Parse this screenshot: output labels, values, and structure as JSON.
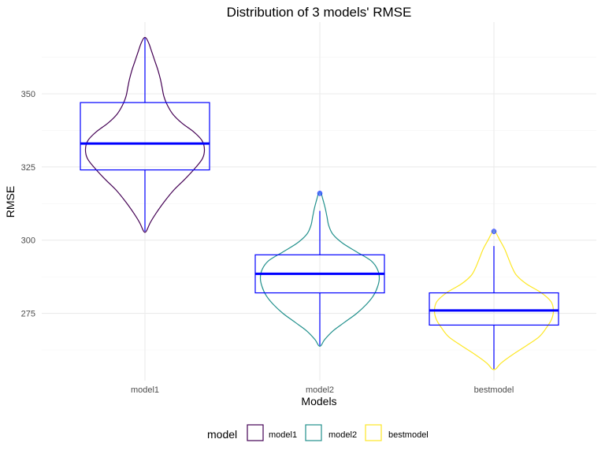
{
  "chart_data": {
    "type": "violin+box",
    "title": "Distribution of 3 models' RMSE",
    "xlabel": "Models",
    "ylabel": "RMSE",
    "categories": [
      "model1",
      "model2",
      "bestmodel"
    ],
    "yticks": [
      275,
      300,
      325,
      350
    ],
    "ylim": [
      252,
      374.5
    ],
    "grid": true,
    "legend": {
      "title": "model",
      "position": "bottom",
      "items": [
        "model1",
        "model2",
        "bestmodel"
      ]
    },
    "colors": {
      "model1": "#440154",
      "model2": "#21908C",
      "bestmodel": "#FDE725",
      "box": "#0000FF",
      "outlier": "#3366FF",
      "grid_major": "#EBEBEB",
      "grid_minor": "#F5F5F5"
    },
    "series": [
      {
        "name": "model1",
        "box": {
          "min": 303,
          "q1": 324,
          "median": 333,
          "q3": 347,
          "max": 369
        },
        "outliers": [],
        "violin": {
          "min": 303,
          "max": 369,
          "profile": [
            [
              303,
              0.02
            ],
            [
              306,
              0.09
            ],
            [
              309,
              0.18
            ],
            [
              313,
              0.32
            ],
            [
              317,
              0.48
            ],
            [
              321,
              0.68
            ],
            [
              325,
              0.86
            ],
            [
              328,
              0.97
            ],
            [
              331,
              1.0
            ],
            [
              334,
              0.96
            ],
            [
              337,
              0.82
            ],
            [
              340,
              0.62
            ],
            [
              343,
              0.47
            ],
            [
              346,
              0.38
            ],
            [
              349,
              0.32
            ],
            [
              352,
              0.29
            ],
            [
              355,
              0.26
            ],
            [
              358,
              0.22
            ],
            [
              361,
              0.17
            ],
            [
              364,
              0.12
            ],
            [
              367,
              0.07
            ],
            [
              369,
              0.02
            ]
          ]
        }
      },
      {
        "name": "model2",
        "box": {
          "min": 264,
          "q1": 282,
          "median": 288.5,
          "q3": 295,
          "max": 310
        },
        "outliers": [
          316
        ],
        "violin": {
          "min": 264,
          "max": 316,
          "profile": [
            [
              264,
              0.02
            ],
            [
              266,
              0.08
            ],
            [
              269,
              0.22
            ],
            [
              272,
              0.42
            ],
            [
              275,
              0.62
            ],
            [
              278,
              0.78
            ],
            [
              281,
              0.9
            ],
            [
              284,
              0.97
            ],
            [
              287,
              1.0
            ],
            [
              290,
              0.97
            ],
            [
              293,
              0.86
            ],
            [
              296,
              0.62
            ],
            [
              299,
              0.38
            ],
            [
              302,
              0.22
            ],
            [
              305,
              0.15
            ],
            [
              308,
              0.12
            ],
            [
              311,
              0.09
            ],
            [
              314,
              0.05
            ],
            [
              316,
              0.02
            ]
          ]
        }
      },
      {
        "name": "bestmodel",
        "box": {
          "min": 256,
          "q1": 271,
          "median": 276,
          "q3": 282,
          "max": 298
        },
        "outliers": [
          303
        ],
        "violin": {
          "min": 256,
          "max": 303,
          "profile": [
            [
              256,
              0.03
            ],
            [
              258,
              0.12
            ],
            [
              261,
              0.32
            ],
            [
              264,
              0.55
            ],
            [
              267,
              0.76
            ],
            [
              270,
              0.88
            ],
            [
              273,
              0.97
            ],
            [
              276,
              1.0
            ],
            [
              279,
              0.96
            ],
            [
              282,
              0.8
            ],
            [
              285,
              0.55
            ],
            [
              288,
              0.38
            ],
            [
              291,
              0.3
            ],
            [
              294,
              0.24
            ],
            [
              297,
              0.18
            ],
            [
              300,
              0.1
            ],
            [
              303,
              0.02
            ]
          ]
        }
      }
    ]
  }
}
